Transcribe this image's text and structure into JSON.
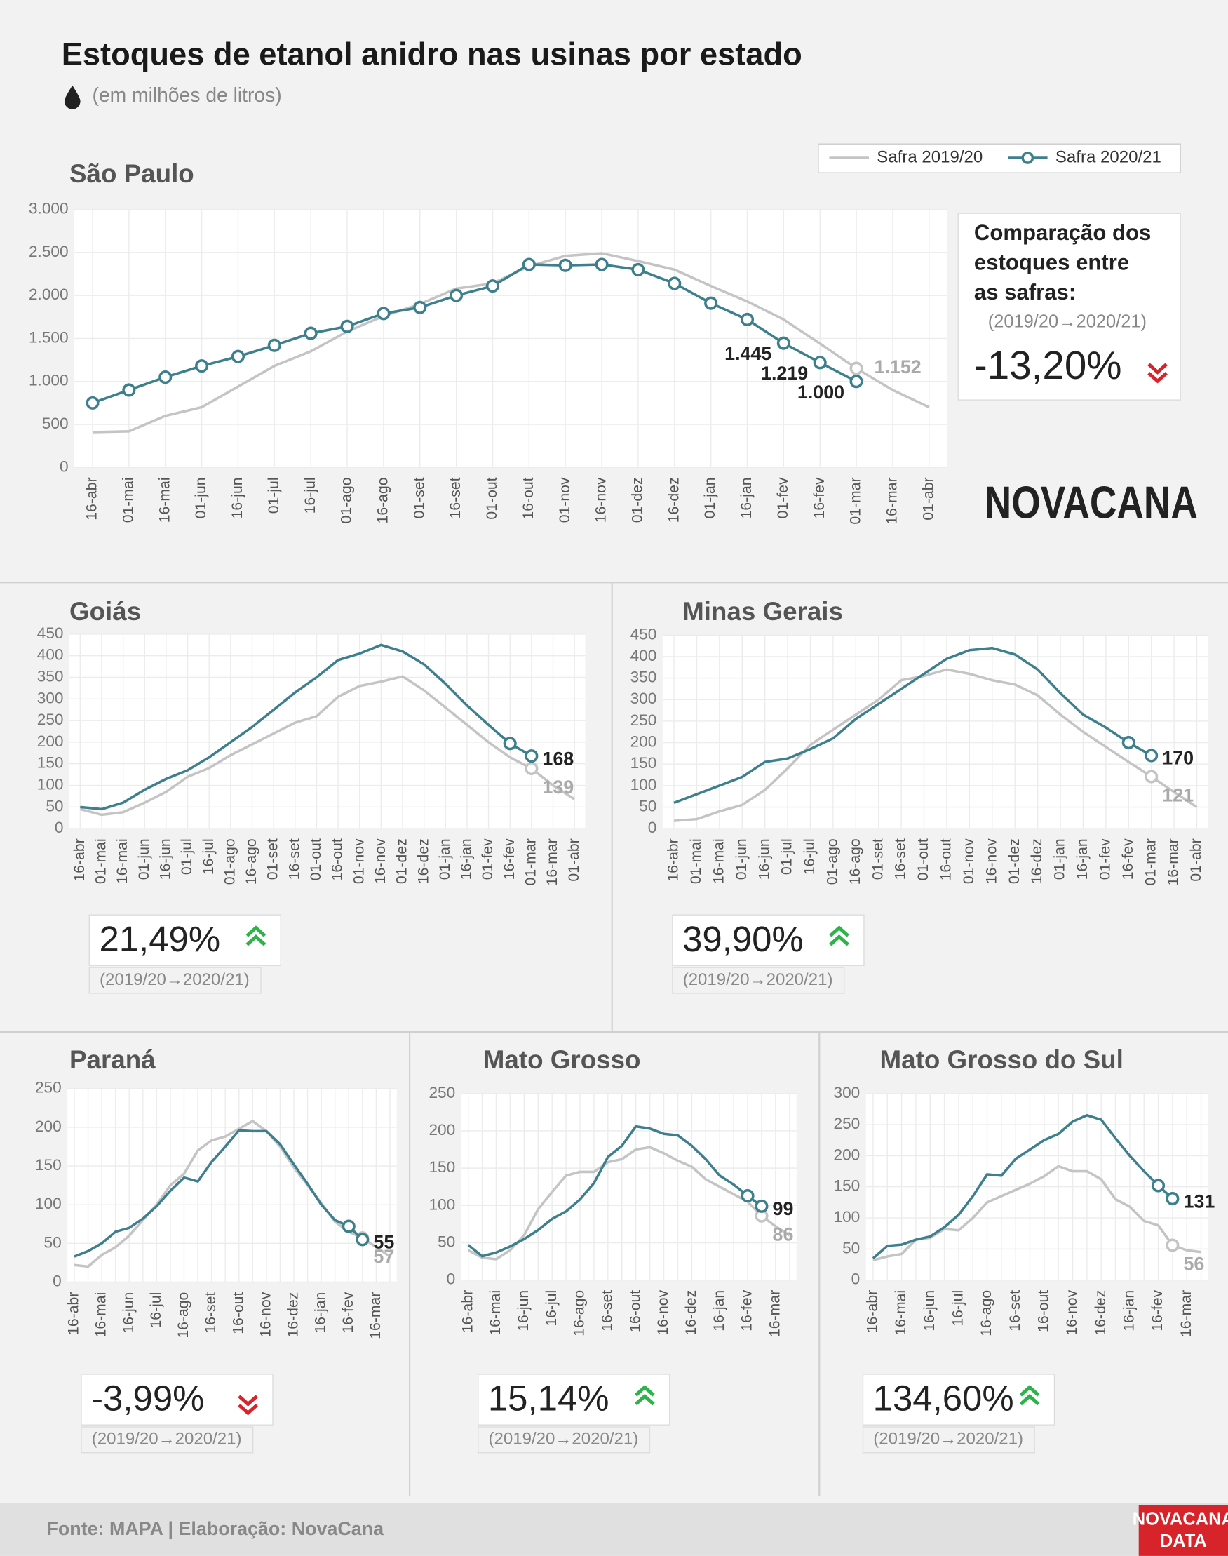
{
  "header": {
    "title": "Estoques de etanol anidro nas usinas por estado",
    "subtitle": "(em milhões de litros)"
  },
  "logo": "NOVACANA",
  "footer": {
    "source": "Fonte: MAPA  | Elaboração: NovaCana",
    "brand": [
      "NOVACANA",
      "DATA"
    ]
  },
  "chart_data": [
    {
      "type": "line",
      "title": "São Paulo",
      "legend": "top-right",
      "grid": true,
      "markers": true,
      "categories": [
        "16-abr",
        "01-mai",
        "16-mai",
        "01-jun",
        "16-jun",
        "01-jul",
        "16-jul",
        "01-ago",
        "16-ago",
        "01-set",
        "16-set",
        "01-out",
        "16-out",
        "01-nov",
        "16-nov",
        "01-dez",
        "16-dez",
        "01-jan",
        "16-jan",
        "01-fev",
        "16-fev",
        "01-mar",
        "16-mar",
        "01-abr"
      ],
      "ylim": [
        0,
        3000
      ],
      "yticks": [
        0,
        500,
        {
          "value": 1000,
          "label": "1.000"
        },
        {
          "value": 1500,
          "label": "1.500"
        },
        {
          "value": 2000,
          "label": "2.000"
        },
        {
          "value": 2500,
          "label": "2.500"
        },
        {
          "value": 3000,
          "label": "3.000"
        }
      ],
      "series": [
        {
          "name": "Safra 2019/20",
          "color": "#c4c4c4",
          "values": [
            410,
            420,
            600,
            700,
            940,
            1180,
            1350,
            1580,
            1760,
            1900,
            2080,
            2140,
            2340,
            2460,
            2490,
            2400,
            2300,
            2110,
            1930,
            1720,
            1440,
            1152,
            900,
            700
          ],
          "value_labels": [
            null,
            null,
            null,
            null,
            null,
            null,
            null,
            null,
            null,
            null,
            null,
            null,
            null,
            null,
            null,
            null,
            null,
            null,
            null,
            null,
            null,
            "1.152",
            null,
            null
          ]
        },
        {
          "name": "Safra 2020/21",
          "color": "#3d7f8c",
          "values": [
            750,
            900,
            1050,
            1180,
            1290,
            1420,
            1560,
            1640,
            1790,
            1860,
            2000,
            2110,
            2360,
            2350,
            2360,
            2300,
            2140,
            1910,
            1720,
            1445,
            1219,
            1000,
            null,
            null
          ],
          "value_labels": [
            null,
            null,
            null,
            null,
            null,
            null,
            null,
            null,
            null,
            null,
            null,
            null,
            null,
            null,
            null,
            null,
            null,
            null,
            null,
            "1.445",
            "1.219",
            "1.000",
            null,
            null
          ]
        }
      ],
      "comparison": {
        "heading": [
          "Comparação dos",
          "estoques entre",
          "as safras:"
        ],
        "period": "(2019/20→2020/21)",
        "change": "-13,20%"
      }
    },
    {
      "type": "line",
      "title": "Goiás",
      "grid": true,
      "categories": [
        "16-abr",
        "01-mai",
        "16-mai",
        "01-jun",
        "16-jun",
        "01-jul",
        "16-jul",
        "01-ago",
        "16-ago",
        "01-set",
        "16-set",
        "01-out",
        "16-out",
        "01-nov",
        "16-nov",
        "01-dez",
        "16-dez",
        "01-jan",
        "16-jan",
        "01-fev",
        "16-fev",
        "01-mar",
        "16-mar",
        "01-abr"
      ],
      "ylim": [
        0,
        450
      ],
      "yticks": [
        0,
        50,
        100,
        150,
        200,
        250,
        300,
        350,
        400,
        450
      ],
      "series": [
        {
          "color": "#c4c4c4",
          "values": [
            45,
            32,
            38,
            60,
            85,
            120,
            140,
            170,
            195,
            220,
            245,
            260,
            305,
            330,
            340,
            352,
            320,
            280,
            240,
            200,
            165,
            139,
            100,
            68
          ],
          "value_labels": [
            null,
            null,
            null,
            null,
            null,
            null,
            null,
            null,
            null,
            null,
            null,
            null,
            null,
            null,
            null,
            null,
            null,
            null,
            null,
            null,
            null,
            "139",
            null,
            null
          ]
        },
        {
          "color": "#3d7f8c",
          "values": [
            50,
            45,
            60,
            90,
            115,
            135,
            165,
            200,
            235,
            275,
            315,
            350,
            390,
            405,
            425,
            410,
            380,
            335,
            285,
            240,
            197,
            168,
            null,
            null
          ],
          "value_labels": [
            null,
            null,
            null,
            null,
            null,
            null,
            null,
            null,
            null,
            null,
            null,
            null,
            null,
            null,
            null,
            null,
            null,
            null,
            null,
            null,
            null,
            "168",
            null,
            null
          ]
        }
      ],
      "comparison": {
        "period": "(2019/20→2020/21)",
        "change": "21,49%"
      }
    },
    {
      "type": "line",
      "title": "Minas Gerais",
      "grid": true,
      "categories": [
        "16-abr",
        "01-mai",
        "16-mai",
        "01-jun",
        "16-jun",
        "01-jul",
        "16-jul",
        "01-ago",
        "16-ago",
        "01-set",
        "16-set",
        "01-out",
        "16-out",
        "01-nov",
        "16-nov",
        "01-dez",
        "16-dez",
        "01-jan",
        "16-jan",
        "01-fev",
        "16-fev",
        "01-mar",
        "16-mar",
        "01-abr"
      ],
      "ylim": [
        0,
        450
      ],
      "yticks": [
        0,
        50,
        100,
        150,
        200,
        250,
        300,
        350,
        400,
        450
      ],
      "series": [
        {
          "color": "#c4c4c4",
          "values": [
            18,
            22,
            40,
            55,
            90,
            140,
            195,
            230,
            265,
            300,
            345,
            355,
            370,
            360,
            345,
            335,
            310,
            265,
            225,
            190,
            155,
            121,
            85,
            50
          ],
          "value_labels": [
            null,
            null,
            null,
            null,
            null,
            null,
            null,
            null,
            null,
            null,
            null,
            null,
            null,
            null,
            null,
            null,
            null,
            null,
            null,
            null,
            null,
            "121",
            null,
            null
          ]
        },
        {
          "color": "#3d7f8c",
          "values": [
            60,
            80,
            100,
            120,
            155,
            163,
            185,
            210,
            255,
            290,
            325,
            360,
            395,
            415,
            420,
            405,
            370,
            315,
            265,
            235,
            200,
            170,
            null,
            null
          ],
          "value_labels": [
            null,
            null,
            null,
            null,
            null,
            null,
            null,
            null,
            null,
            null,
            null,
            null,
            null,
            null,
            null,
            null,
            null,
            null,
            null,
            null,
            null,
            "170",
            null,
            null
          ]
        }
      ],
      "comparison": {
        "period": "(2019/20→2020/21)",
        "change": "39,90%"
      }
    },
    {
      "type": "line",
      "title": "Paraná",
      "grid": true,
      "categories": [
        "16-abr",
        null,
        "16-mai",
        null,
        "16-jun",
        null,
        "16-jul",
        null,
        "16-ago",
        null,
        "16-set",
        null,
        "16-out",
        null,
        "16-nov",
        null,
        "16-dez",
        null,
        "16-jan",
        null,
        "16-fev",
        null,
        "16-mar",
        null
      ],
      "ylim": [
        0,
        250
      ],
      "yticks": [
        0,
        50,
        100,
        150,
        200,
        250
      ],
      "series": [
        {
          "color": "#c4c4c4",
          "values": [
            22,
            20,
            35,
            45,
            60,
            80,
            100,
            125,
            140,
            170,
            183,
            188,
            198,
            208,
            195,
            175,
            148,
            125,
            102,
            78,
            65,
            57,
            45,
            33
          ],
          "value_labels": [
            null,
            null,
            null,
            null,
            null,
            null,
            null,
            null,
            null,
            null,
            null,
            null,
            null,
            null,
            null,
            null,
            null,
            null,
            null,
            null,
            null,
            "57",
            null,
            null
          ]
        },
        {
          "color": "#3d7f8c",
          "values": [
            33,
            40,
            50,
            65,
            70,
            82,
            98,
            118,
            135,
            130,
            155,
            175,
            196,
            195,
            195,
            178,
            152,
            127,
            100,
            80,
            72,
            55,
            null,
            null
          ],
          "value_labels": [
            null,
            null,
            null,
            null,
            null,
            null,
            null,
            null,
            null,
            null,
            null,
            null,
            null,
            null,
            null,
            null,
            null,
            null,
            null,
            null,
            null,
            "55",
            null,
            null
          ]
        }
      ],
      "comparison": {
        "period": "(2019/20→2020/21)",
        "change": "-3,99%"
      }
    },
    {
      "type": "line",
      "title": "Mato Grosso",
      "grid": true,
      "categories": [
        "16-abr",
        null,
        "16-mai",
        null,
        "16-jun",
        null,
        "16-jul",
        null,
        "16-ago",
        null,
        "16-set",
        null,
        "16-out",
        null,
        "16-nov",
        null,
        "16-dez",
        null,
        "16-jan",
        null,
        "16-fev",
        null,
        "16-mar",
        null
      ],
      "ylim": [
        0,
        250
      ],
      "yticks": [
        0,
        50,
        100,
        150,
        200,
        250
      ],
      "series": [
        {
          "color": "#c4c4c4",
          "values": [
            40,
            30,
            28,
            40,
            60,
            95,
            118,
            140,
            145,
            145,
            158,
            162,
            175,
            178,
            170,
            160,
            152,
            135,
            125,
            115,
            105,
            86,
            72,
            60
          ],
          "value_labels": [
            null,
            null,
            null,
            null,
            null,
            null,
            null,
            null,
            null,
            null,
            null,
            null,
            null,
            null,
            null,
            null,
            null,
            null,
            null,
            null,
            null,
            "86",
            null,
            null
          ]
        },
        {
          "color": "#3d7f8c",
          "values": [
            47,
            32,
            37,
            45,
            55,
            67,
            82,
            92,
            108,
            130,
            165,
            180,
            206,
            203,
            196,
            194,
            180,
            162,
            140,
            128,
            113,
            99,
            null,
            null
          ],
          "value_labels": [
            null,
            null,
            null,
            null,
            null,
            null,
            null,
            null,
            null,
            null,
            null,
            null,
            null,
            null,
            null,
            null,
            null,
            null,
            null,
            null,
            null,
            "99",
            null,
            null
          ]
        }
      ],
      "comparison": {
        "period": "(2019/20→2020/21)",
        "change": "15,14%"
      }
    },
    {
      "type": "line",
      "title": "Mato Grosso do Sul",
      "grid": true,
      "categories": [
        "16-abr",
        null,
        "16-mai",
        null,
        "16-jun",
        null,
        "16-jul",
        null,
        "16-ago",
        null,
        "16-set",
        null,
        "16-out",
        null,
        "16-nov",
        null,
        "16-dez",
        null,
        "16-jan",
        null,
        "16-fev",
        null,
        "16-mar",
        null
      ],
      "ylim": [
        0,
        300
      ],
      "yticks": [
        0,
        50,
        100,
        150,
        200,
        250,
        300
      ],
      "series": [
        {
          "color": "#c4c4c4",
          "values": [
            32,
            38,
            42,
            65,
            68,
            82,
            80,
            100,
            125,
            135,
            145,
            155,
            167,
            183,
            175,
            175,
            162,
            130,
            118,
            95,
            88,
            56,
            48,
            45
          ],
          "value_labels": [
            null,
            null,
            null,
            null,
            null,
            null,
            null,
            null,
            null,
            null,
            null,
            null,
            null,
            null,
            null,
            null,
            null,
            null,
            null,
            null,
            null,
            "56",
            null,
            null
          ]
        },
        {
          "color": "#3d7f8c",
          "values": [
            35,
            55,
            57,
            65,
            70,
            85,
            105,
            135,
            170,
            168,
            195,
            210,
            225,
            235,
            255,
            265,
            258,
            228,
            200,
            175,
            152,
            131,
            null,
            null
          ],
          "value_labels": [
            null,
            null,
            null,
            null,
            null,
            null,
            null,
            null,
            null,
            null,
            null,
            null,
            null,
            null,
            null,
            null,
            null,
            null,
            null,
            null,
            null,
            "131",
            null,
            null
          ]
        }
      ],
      "comparison": {
        "period": "(2019/20→2020/21)",
        "change": "134,60%"
      }
    }
  ]
}
